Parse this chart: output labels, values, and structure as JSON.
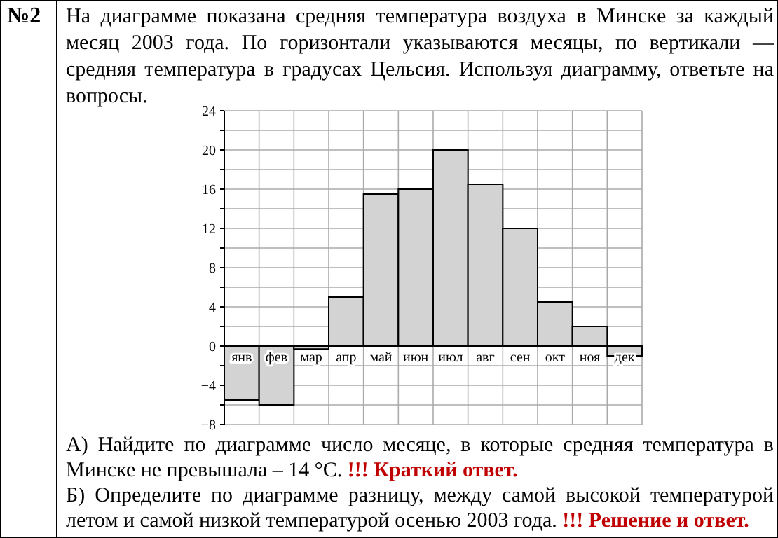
{
  "chart_data": {
    "type": "bar",
    "title": "На диаграмме показана средняя температура воздуха в Минске за каждый месяц 2003 года. По горизонтали указываются месяцы, по вертикали — средняя температура в градусах Цельсия. Используя диаграмму, ответьте на вопросы.",
    "categories": [
      "янв",
      "фев",
      "мар",
      "апр",
      "май",
      "июн",
      "июл",
      "авг",
      "сен",
      "окт",
      "ноя",
      "дек"
    ],
    "values": [
      -5.5,
      -6,
      -0.3,
      5,
      15.5,
      16,
      20,
      16.5,
      12,
      4.5,
      2,
      -1
    ],
    "color": "#d3d3d3",
    "ylim": [
      -8,
      24
    ],
    "yticks": [
      {
        "value": -8,
        "label": "−8"
      },
      {
        "value": -6,
        "label": null
      },
      {
        "value": -4,
        "label": "−4"
      },
      {
        "value": -2,
        "label": null
      },
      0,
      {
        "value": 2,
        "label": null
      },
      4,
      {
        "value": 6,
        "label": null
      },
      8,
      {
        "value": 10,
        "label": null
      },
      12,
      {
        "value": 14,
        "label": null
      },
      16,
      {
        "value": 18,
        "label": null
      },
      20,
      {
        "value": 22,
        "label": null
      },
      24
    ],
    "grid": true,
    "annotations": [
      "№2",
      "А) Найдите по диаграмме число месяце, в которые средняя температура в Минске не превышала – 14 °C.",
      "!!! Краткий ответ.",
      "Б) Определите по диаграмме разницу, между самой высокой температурой летом и самой низкой температурой осенью 2003 года.",
      "!!! Решение и ответ."
    ]
  }
}
